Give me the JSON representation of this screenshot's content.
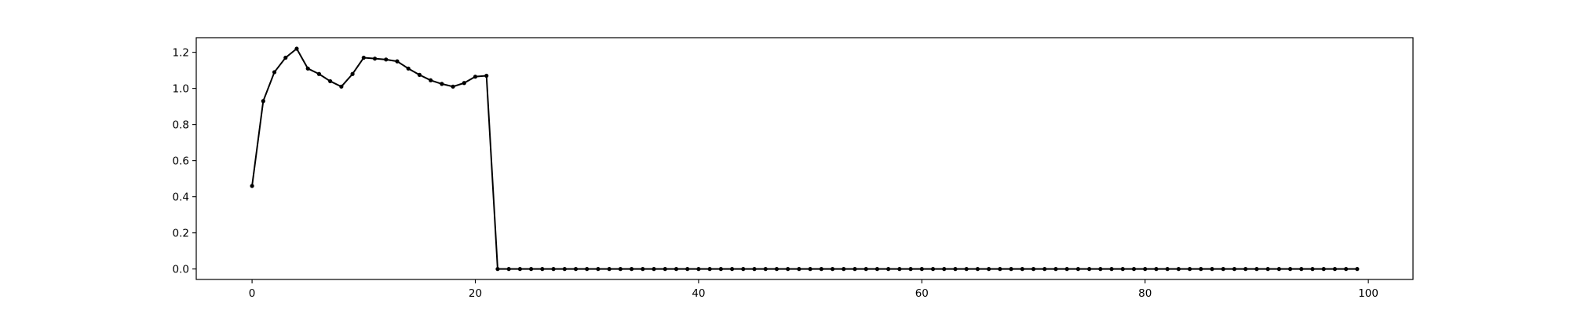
{
  "chart_data": {
    "type": "line",
    "title": "",
    "xlabel": "",
    "ylabel": "",
    "xlim": [
      -5,
      104
    ],
    "ylim": [
      -0.058,
      1.281
    ],
    "xticks": [
      0,
      20,
      40,
      60,
      80,
      100
    ],
    "yticks": [
      0.0,
      0.2,
      0.4,
      0.6,
      0.8,
      1.0,
      1.2
    ],
    "xtick_labels": [
      "0",
      "20",
      "40",
      "60",
      "80",
      "100"
    ],
    "ytick_labels": [
      "0.0",
      "0.2",
      "0.4",
      "0.6",
      "0.8",
      "1.0",
      "1.2"
    ],
    "grid": false,
    "legend": "none",
    "series": [
      {
        "color": "#000000",
        "marker": "dot",
        "x": [
          0,
          1,
          2,
          3,
          4,
          5,
          6,
          7,
          8,
          9,
          10,
          11,
          12,
          13,
          14,
          15,
          16,
          17,
          18,
          19,
          20,
          21,
          22,
          23,
          24,
          25,
          26,
          27,
          28,
          29,
          30,
          31,
          32,
          33,
          34,
          35,
          36,
          37,
          38,
          39,
          40,
          41,
          42,
          43,
          44,
          45,
          46,
          47,
          48,
          49,
          50,
          51,
          52,
          53,
          54,
          55,
          56,
          57,
          58,
          59,
          60,
          61,
          62,
          63,
          64,
          65,
          66,
          67,
          68,
          69,
          70,
          71,
          72,
          73,
          74,
          75,
          76,
          77,
          78,
          79,
          80,
          81,
          82,
          83,
          84,
          85,
          86,
          87,
          88,
          89,
          90,
          91,
          92,
          93,
          94,
          95,
          96,
          97,
          98,
          99
        ],
        "y": [
          0.46,
          0.93,
          1.09,
          1.17,
          1.22,
          1.11,
          1.08,
          1.04,
          1.01,
          1.08,
          1.17,
          1.165,
          1.16,
          1.15,
          1.11,
          1.075,
          1.045,
          1.025,
          1.01,
          1.03,
          1.065,
          1.07,
          0,
          0,
          0,
          0,
          0,
          0,
          0,
          0,
          0,
          0,
          0,
          0,
          0,
          0,
          0,
          0,
          0,
          0,
          0,
          0,
          0,
          0,
          0,
          0,
          0,
          0,
          0,
          0,
          0,
          0,
          0,
          0,
          0,
          0,
          0,
          0,
          0,
          0,
          0,
          0,
          0,
          0,
          0,
          0,
          0,
          0,
          0,
          0,
          0,
          0,
          0,
          0,
          0,
          0,
          0,
          0,
          0,
          0,
          0,
          0,
          0,
          0,
          0,
          0,
          0,
          0,
          0,
          0,
          0,
          0,
          0,
          0,
          0,
          0,
          0,
          0,
          0,
          0
        ]
      }
    ]
  }
}
